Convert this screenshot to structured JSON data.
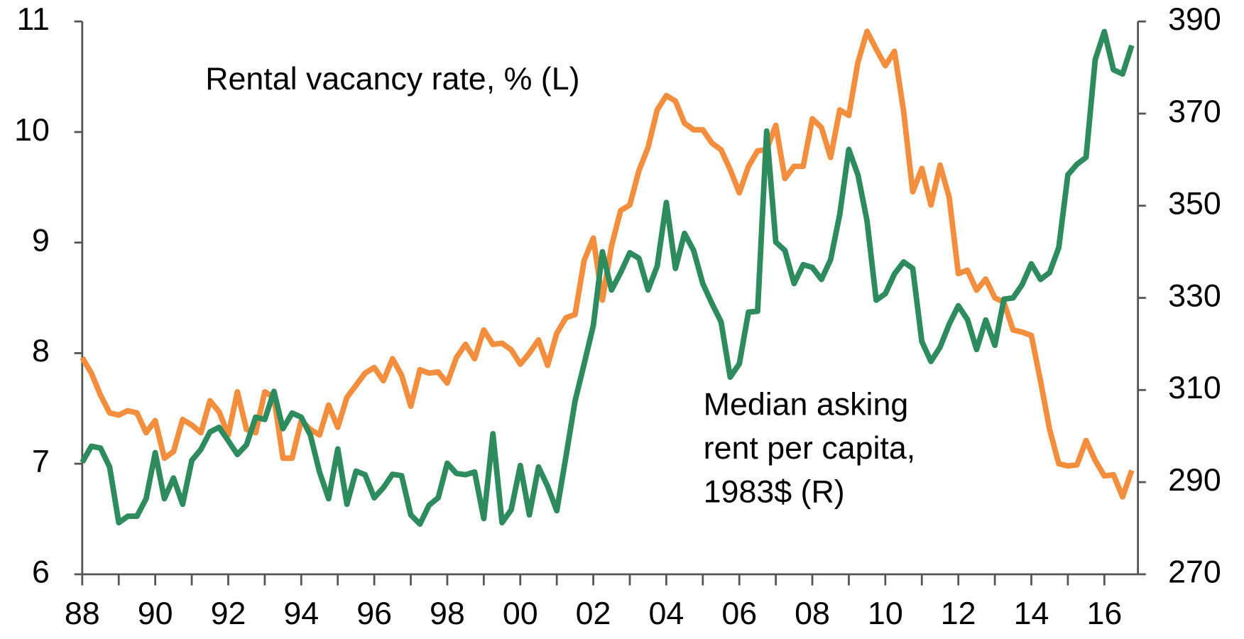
{
  "chart_data": {
    "type": "line",
    "x": [
      1988,
      1988.25,
      1988.5,
      1988.75,
      1989,
      1989.25,
      1989.5,
      1989.75,
      1990,
      1990.25,
      1990.5,
      1990.75,
      1991,
      1991.25,
      1991.5,
      1991.75,
      1992,
      1992.25,
      1992.5,
      1992.75,
      1993,
      1993.25,
      1993.5,
      1993.75,
      1994,
      1994.25,
      1994.5,
      1994.75,
      1995,
      1995.25,
      1995.5,
      1995.75,
      1996,
      1996.25,
      1996.5,
      1996.75,
      1997,
      1997.25,
      1997.5,
      1997.75,
      1998,
      1998.25,
      1998.5,
      1998.75,
      1999,
      1999.25,
      1999.5,
      1999.75,
      2000,
      2000.25,
      2000.5,
      2000.75,
      2001,
      2001.25,
      2001.5,
      2001.75,
      2002,
      2002.25,
      2002.5,
      2002.75,
      2003,
      2003.25,
      2003.5,
      2003.75,
      2004,
      2004.25,
      2004.5,
      2004.75,
      2005,
      2005.25,
      2005.5,
      2005.75,
      2006,
      2006.25,
      2006.5,
      2006.75,
      2007,
      2007.25,
      2007.5,
      2007.75,
      2008,
      2008.25,
      2008.5,
      2008.75,
      2009,
      2009.25,
      2009.5,
      2009.75,
      2010,
      2010.25,
      2010.5,
      2010.75,
      2011,
      2011.25,
      2011.5,
      2011.75,
      2012,
      2012.25,
      2012.5,
      2012.75,
      2013,
      2013.25,
      2013.5,
      2013.75,
      2014,
      2014.25,
      2014.5,
      2014.75,
      2015,
      2015.25,
      2015.5,
      2015.75,
      2016,
      2016.25,
      2016.5,
      2016.75
    ],
    "series": [
      {
        "name": "Rental vacancy rate, % (L)",
        "color": "#f28e3d",
        "axis": "y",
        "values": [
          7.96,
          7.82,
          7.62,
          7.46,
          7.44,
          7.48,
          7.46,
          7.28,
          7.39,
          7.05,
          7.11,
          7.4,
          7.35,
          7.28,
          7.57,
          7.47,
          7.26,
          7.65,
          7.31,
          7.28,
          7.65,
          7.6,
          7.05,
          7.05,
          7.39,
          7.31,
          7.26,
          7.53,
          7.33,
          7.6,
          7.71,
          7.82,
          7.87,
          7.75,
          7.95,
          7.8,
          7.52,
          7.85,
          7.82,
          7.83,
          7.73,
          7.96,
          8.08,
          7.95,
          8.21,
          8.08,
          8.09,
          8.03,
          7.9,
          8.0,
          8.12,
          7.89,
          8.18,
          8.32,
          8.35,
          8.84,
          9.04,
          8.48,
          8.97,
          9.29,
          9.34,
          9.65,
          9.86,
          10.2,
          10.33,
          10.28,
          10.08,
          10.02,
          10.02,
          9.9,
          9.84,
          9.66,
          9.45,
          9.69,
          9.83,
          9.84,
          10.06,
          9.58,
          9.69,
          9.69,
          10.12,
          10.04,
          9.77,
          10.2,
          10.15,
          10.63,
          10.91,
          10.75,
          10.6,
          10.73,
          10.19,
          9.46,
          9.67,
          9.34,
          9.7,
          9.41,
          8.72,
          8.75,
          8.57,
          8.67,
          8.5,
          8.46,
          8.21,
          8.19,
          8.16,
          7.75,
          7.31,
          7.0,
          6.98,
          6.99,
          7.21,
          7.03,
          6.89,
          6.9,
          6.7,
          6.94
        ]
      },
      {
        "name": "Median asking rent per capita, 1983$ (R)",
        "color": "#2e8b5e",
        "axis": "y2",
        "values": [
          294.3,
          297.8,
          297.4,
          293.3,
          281.2,
          282.6,
          282.6,
          286.4,
          296.4,
          286.4,
          290.9,
          285.2,
          294.7,
          297.1,
          300.9,
          301.9,
          299.0,
          296.0,
          298.1,
          304.1,
          303.6,
          309.7,
          301.6,
          305.0,
          304.1,
          300.2,
          292.2,
          286.4,
          297.2,
          285.2,
          292.4,
          291.6,
          286.6,
          288.8,
          291.7,
          291.4,
          282.9,
          280.9,
          285.0,
          286.6,
          294.1,
          291.9,
          291.6,
          292.2,
          282.1,
          300.5,
          281.2,
          284.0,
          293.6,
          282.9,
          293.3,
          289.1,
          283.8,
          295.5,
          307.6,
          315.7,
          324.0,
          340.0,
          331.7,
          335.5,
          339.8,
          338.6,
          331.7,
          336.9,
          350.7,
          336.4,
          344.0,
          340.3,
          333.1,
          328.8,
          324.8,
          312.8,
          315.7,
          326.9,
          327.1,
          366.2,
          342.1,
          340.3,
          333.1,
          337.2,
          336.6,
          334.0,
          338.3,
          348.1,
          362.2,
          356.7,
          346.7,
          329.5,
          330.9,
          335.2,
          337.8,
          336.4,
          320.5,
          316.2,
          319.3,
          324.3,
          328.3,
          325.3,
          318.8,
          325.2,
          319.7,
          329.7,
          330.0,
          332.9,
          337.4,
          334.0,
          335.5,
          340.9,
          356.7,
          359.0,
          360.5,
          381.7,
          387.8,
          379.5,
          378.6,
          384.8
        ]
      }
    ],
    "annotations": [
      {
        "lines": [
          "Rental vacancy rate, % (L)"
        ]
      },
      {
        "lines": [
          "Median asking",
          "rent per capita,",
          "1983$ (R)"
        ]
      }
    ],
    "xlim": [
      1988,
      2016.92
    ],
    "xticks": [
      {
        "value": 1988,
        "label": "88"
      },
      {
        "value": 1990,
        "label": "90"
      },
      {
        "value": 1992,
        "label": "92"
      },
      {
        "value": 1994,
        "label": "94"
      },
      {
        "value": 1996,
        "label": "96"
      },
      {
        "value": 1998,
        "label": "98"
      },
      {
        "value": 2000,
        "label": "00"
      },
      {
        "value": 2002,
        "label": "02"
      },
      {
        "value": 2004,
        "label": "04"
      },
      {
        "value": 2006,
        "label": "06"
      },
      {
        "value": 2008,
        "label": "08"
      },
      {
        "value": 2010,
        "label": "10"
      },
      {
        "value": 2012,
        "label": "12"
      },
      {
        "value": 2014,
        "label": "14"
      },
      {
        "value": 2016,
        "label": "16"
      }
    ],
    "xminorticks": [
      1989,
      1991,
      1993,
      1995,
      1997,
      1999,
      2001,
      2003,
      2005,
      2007,
      2009,
      2011,
      2013,
      2015
    ],
    "ylim": [
      6,
      11
    ],
    "yticks": [
      6,
      7,
      8,
      9,
      10,
      11
    ],
    "y2lim": [
      270,
      390
    ],
    "y2ticks": [
      270,
      290,
      310,
      330,
      350,
      370,
      390
    ]
  }
}
